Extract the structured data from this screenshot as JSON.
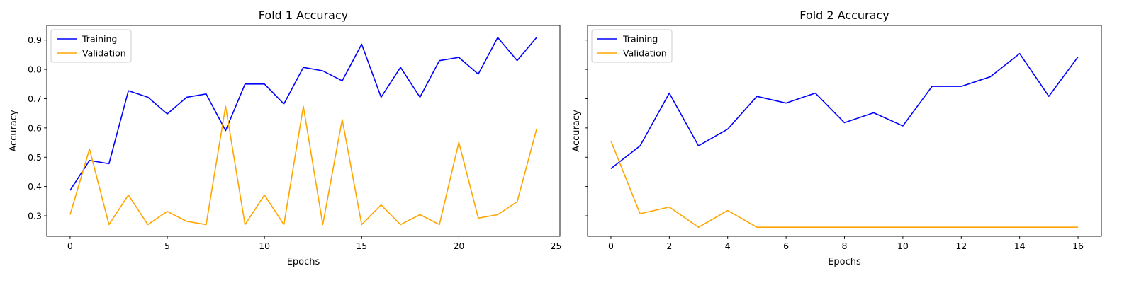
{
  "chart_data": [
    {
      "type": "line",
      "title": "Fold 1 Accuracy",
      "xlabel": "Epochs",
      "ylabel": "Accuracy",
      "xlim": [
        -1.2,
        25.2
      ],
      "ylim": [
        0.23,
        0.95
      ],
      "x_ticks": [
        0,
        5,
        10,
        15,
        20,
        25
      ],
      "y_ticks": [
        0.3,
        0.4,
        0.5,
        0.6,
        0.7,
        0.8,
        0.9
      ],
      "y_tick_labels": [
        "0.3",
        "0.4",
        "0.5",
        "0.6",
        "0.7",
        "0.8",
        "0.9"
      ],
      "legend_position": "upper-left",
      "grid": false,
      "x": [
        0,
        1,
        2,
        3,
        4,
        5,
        6,
        7,
        8,
        9,
        10,
        11,
        12,
        13,
        14,
        15,
        16,
        17,
        18,
        19,
        20,
        21,
        22,
        23,
        24
      ],
      "series": [
        {
          "name": "Training",
          "color": "#0000ff",
          "values": [
            0.387,
            0.489,
            0.478,
            0.727,
            0.705,
            0.648,
            0.705,
            0.716,
            0.591,
            0.75,
            0.75,
            0.682,
            0.807,
            0.795,
            0.761,
            0.886,
            0.705,
            0.807,
            0.705,
            0.83,
            0.841,
            0.784,
            0.909,
            0.83,
            0.909
          ]
        },
        {
          "name": "Validation",
          "color": "#ffa500",
          "values": [
            0.304,
            0.528,
            0.27,
            0.371,
            0.27,
            0.315,
            0.281,
            0.27,
            0.674,
            0.27,
            0.371,
            0.27,
            0.674,
            0.27,
            0.629,
            0.27,
            0.337,
            0.27,
            0.304,
            0.27,
            0.551,
            0.292,
            0.304,
            0.348,
            0.596
          ]
        }
      ]
    },
    {
      "type": "line",
      "title": "Fold 2 Accuracy",
      "xlabel": "Epochs",
      "ylabel": "Accuracy",
      "xlim": [
        -0.8,
        16.8
      ],
      "ylim": [
        0.23,
        0.95
      ],
      "x_ticks": [
        0,
        2,
        4,
        6,
        8,
        10,
        12,
        14,
        16
      ],
      "y_ticks": [
        0.3,
        0.4,
        0.5,
        0.6,
        0.7,
        0.8,
        0.9
      ],
      "y_tick_labels": [],
      "legend_position": "upper-left",
      "grid": false,
      "x": [
        0,
        1,
        2,
        3,
        4,
        5,
        6,
        7,
        8,
        9,
        10,
        11,
        12,
        13,
        14,
        15,
        16
      ],
      "series": [
        {
          "name": "Training",
          "color": "#0000ff",
          "values": [
            0.461,
            0.539,
            0.719,
            0.539,
            0.596,
            0.708,
            0.685,
            0.719,
            0.618,
            0.652,
            0.607,
            0.742,
            0.742,
            0.775,
            0.854,
            0.708,
            0.843
          ]
        },
        {
          "name": "Validation",
          "color": "#ffa500",
          "values": [
            0.556,
            0.307,
            0.33,
            0.261,
            0.318,
            0.261,
            0.261,
            0.261,
            0.261,
            0.261,
            0.261,
            0.261,
            0.261,
            0.261,
            0.261,
            0.261,
            0.261
          ]
        }
      ]
    }
  ]
}
